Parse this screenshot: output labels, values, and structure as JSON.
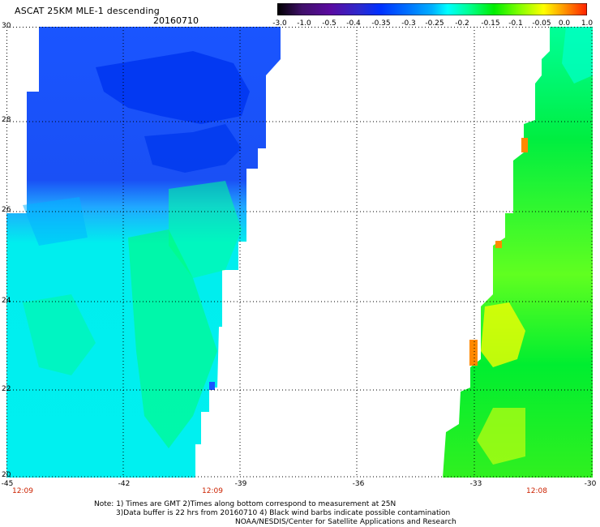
{
  "header": {
    "title": "ASCAT 25KM MLE-1 descending",
    "date": "20160710"
  },
  "colorbar": {
    "labels": [
      "-3.0",
      "-1.0",
      "-0.5",
      "-0.4",
      "-0.35",
      "-0.3",
      "-0.25",
      "-0.2",
      "-0.15",
      "-0.1",
      "-0.05",
      "0.0",
      "1.0"
    ],
    "colors": [
      "#000000",
      "#5a0aa0",
      "#2a2ad0",
      "#0030ff",
      "#0070ff",
      "#00b0ff",
      "#00ffff",
      "#00ff90",
      "#00ee00",
      "#80ff00",
      "#ffff00",
      "#ff9000",
      "#ff2000"
    ]
  },
  "map": {
    "lat_labels": [
      "30",
      "28",
      "26",
      "24",
      "22",
      "20"
    ],
    "lon_labels": [
      "-45",
      "-42",
      "-39",
      "-36",
      "-33",
      "-30"
    ],
    "times": [
      "12:09",
      "12:09",
      "12:08"
    ],
    "colors": {
      "dark_blue": "#0030f0",
      "blue": "#1a55ff",
      "light_blue": "#00aaff",
      "cyan": "#00ffff",
      "aqua_green": "#00ff99",
      "green": "#00ee30",
      "yellow_green": "#90ff10",
      "yellow": "#ffff00",
      "orange": "#ff8800"
    }
  },
  "notes": {
    "line1": "Note: 1) Times are GMT 2)Times along bottom correspond to measurement at 25N",
    "line2": "3)Data buffer is 22 hrs from 20160710 4) Black wind barbs indicate possible contamination",
    "line3": "NOAA/NESDIS/Center for Satellite Applications and Research"
  }
}
